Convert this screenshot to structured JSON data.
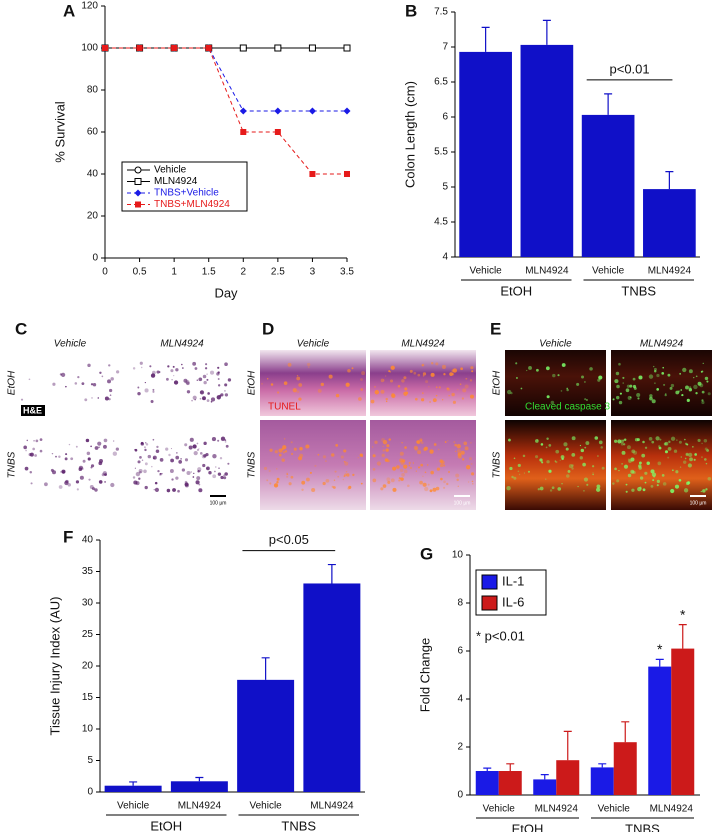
{
  "chart_data": [
    {
      "type": "line",
      "panel": "A",
      "xlabel": "Day",
      "ylabel": "% Survival",
      "x": [
        0,
        0.5,
        1,
        1.5,
        2,
        2.5,
        3,
        3.5
      ],
      "xlim": [
        0,
        3.5
      ],
      "xticks": [
        0,
        0.5,
        1,
        1.5,
        2,
        2.5,
        3,
        3.5
      ],
      "ylim": [
        0,
        120
      ],
      "yticks": [
        0,
        20,
        40,
        60,
        80,
        100,
        120
      ],
      "series": [
        {
          "name": "Vehicle",
          "color": "#000000",
          "marker": "open-circle",
          "dashed": false,
          "values": [
            100,
            100,
            100,
            100,
            100,
            100,
            100,
            100
          ]
        },
        {
          "name": "MLN4924",
          "color": "#000000",
          "marker": "open-square",
          "dashed": false,
          "values": [
            100,
            100,
            100,
            100,
            100,
            100,
            100,
            100
          ]
        },
        {
          "name": "TNBS+Vehicle",
          "color": "#1a1ae6",
          "marker": "diamond",
          "dashed": true,
          "values": [
            100,
            100,
            100,
            100,
            70,
            70,
            70,
            70
          ]
        },
        {
          "name": "TNBS+MLN4924",
          "color": "#e61a1a",
          "marker": "square",
          "dashed": true,
          "values": [
            100,
            100,
            100,
            100,
            60,
            60,
            40,
            40
          ]
        }
      ]
    },
    {
      "type": "bar",
      "panel": "B",
      "ylabel": "Colon Length (cm)",
      "categories": [
        "Vehicle",
        "MLN4924",
        "Vehicle",
        "MLN4924"
      ],
      "groups": [
        "EtOH",
        "TNBS"
      ],
      "values": [
        6.93,
        7.03,
        6.03,
        4.97
      ],
      "errors": [
        0.35,
        0.35,
        0.3,
        0.25
      ],
      "color": "#1010c8",
      "ylim": [
        4,
        7.5
      ],
      "yticks": [
        4,
        4.5,
        5,
        5.5,
        6,
        6.5,
        7,
        7.5
      ],
      "annotation": "p<0.01"
    },
    {
      "type": "bar",
      "panel": "F",
      "ylabel": "Tissue Injury Index (AU)",
      "categories": [
        "Vehicle",
        "MLN4924",
        "Vehicle",
        "MLN4924"
      ],
      "groups": [
        "EtOH",
        "TNBS"
      ],
      "values": [
        1.0,
        1.7,
        17.8,
        33.1
      ],
      "errors": [
        0.6,
        0.6,
        3.5,
        3.0
      ],
      "color": "#1010c8",
      "ylim": [
        0,
        40
      ],
      "yticks": [
        0,
        5,
        10,
        15,
        20,
        25,
        30,
        35,
        40
      ],
      "annotation": "p<0.05"
    },
    {
      "type": "grouped_bar",
      "panel": "G",
      "ylabel": "Fold Change",
      "categories": [
        "Vehicle",
        "MLN4924",
        "Vehicle",
        "MLN4924"
      ],
      "groups": [
        "EtOH",
        "TNBS"
      ],
      "series": [
        {
          "name": "IL-1",
          "color": "#1a1ae6",
          "values": [
            1.0,
            0.65,
            1.15,
            5.35
          ],
          "errors": [
            0.12,
            0.2,
            0.15,
            0.3
          ]
        },
        {
          "name": "IL-6",
          "color": "#cc1a1a",
          "values": [
            1.0,
            1.45,
            2.2,
            6.1
          ],
          "errors": [
            0.3,
            1.2,
            0.85,
            1.0
          ]
        }
      ],
      "ylim": [
        0,
        10
      ],
      "yticks": [
        0,
        2,
        4,
        6,
        8,
        10
      ],
      "note": "* p<0.01",
      "significance": [
        "*",
        "*"
      ]
    }
  ],
  "image_panels": [
    {
      "panel": "C",
      "columns": [
        "Vehicle",
        "MLN4924"
      ],
      "rows": [
        "EtOH",
        "TNBS"
      ],
      "stain": "H&E",
      "scale_bar": "100 µm"
    },
    {
      "panel": "D",
      "columns": [
        "Vehicle",
        "MLN4924"
      ],
      "rows": [
        "EtOH",
        "TNBS"
      ],
      "stain": "TUNEL",
      "scale_bar": "100 µm"
    },
    {
      "panel": "E",
      "columns": [
        "Vehicle",
        "MLN4924"
      ],
      "rows": [
        "EtOH",
        "TNBS"
      ],
      "stain": "Cleaved caspase 3",
      "scale_bar": "100 µm"
    }
  ]
}
